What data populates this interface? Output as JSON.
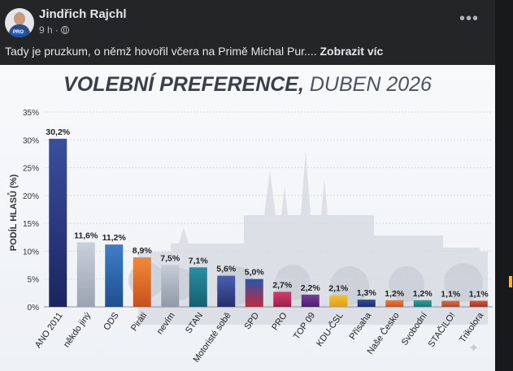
{
  "post": {
    "author": "Jindřich Rajchl",
    "time": "9 h",
    "separator": "·",
    "text": "Tady je pruzkum, o němž hovořil včera na Primě Michal Pur....",
    "see_more": "Zobrazit víc",
    "more_icon": "•••",
    "avatar_badge": "PRO"
  },
  "colors": {
    "post_bg": "#242526",
    "page_bg": "#18191a",
    "text": "#e4e6eb",
    "muted": "#b0b3b8"
  },
  "chart_data": {
    "type": "bar",
    "title_bold": "VOLEBNÍ PREFERENCE,",
    "title_light": "DUBEN 2026",
    "ylabel": "PODÍL HLASŮ (%)",
    "xlabel": "",
    "ylim": [
      0,
      35
    ],
    "yticks": [
      "0%",
      "5%",
      "10%",
      "15%",
      "20%",
      "25%",
      "30%",
      "35%"
    ],
    "categories": [
      "ANO 2011",
      "někdo jiný",
      "ODS",
      "Piráti",
      "nevím",
      "STAN",
      "Motoristé sobě",
      "SPD",
      "PRO",
      "TOP 09",
      "KDU-ČSL",
      "Přísaha",
      "Naše Česko",
      "Svobodní",
      "STAČILO!",
      "Trikolora"
    ],
    "values": [
      30.2,
      11.6,
      11.2,
      8.9,
      7.5,
      7.1,
      5.6,
      5.0,
      2.7,
      2.2,
      2.1,
      1.3,
      1.2,
      1.2,
      1.1,
      1.1
    ],
    "value_labels": [
      "30,2%",
      "11,6%",
      "11,2%",
      "8,9%",
      "7,5%",
      "7,1%",
      "5,6%",
      "5,0%",
      "2,7%",
      "2,2%",
      "2,1%",
      "1,3%",
      "1,2%",
      "1,2%",
      "1,1%",
      "1,1%"
    ],
    "bar_colors": [
      [
        "#3a4f9e",
        "#1c2460"
      ],
      [
        "#c9d0da",
        "#9aa3b1"
      ],
      [
        "#3f7ec7",
        "#1f4f8f"
      ],
      [
        "#f08a3a",
        "#c8511b"
      ],
      [
        "#c4ccd6",
        "#8f99a7"
      ],
      [
        "#2a8fa3",
        "#13606f"
      ],
      [
        "#4b5eb0",
        "#27306e"
      ],
      [
        "#2c54a8",
        "#c32a3a"
      ],
      [
        "#d23c6a",
        "#a01e48"
      ],
      [
        "#7a3a9e",
        "#4e1e70"
      ],
      [
        "#f3c030",
        "#e29f10"
      ],
      [
        "#2b4fa0",
        "#1a2f6d"
      ],
      [
        "#f07a3c",
        "#c8541b"
      ],
      [
        "#2a9f9a",
        "#177a75"
      ],
      [
        "#e06b45",
        "#b64425"
      ],
      [
        "#d8553a",
        "#a93220"
      ]
    ],
    "grid": true,
    "legend": "none"
  }
}
